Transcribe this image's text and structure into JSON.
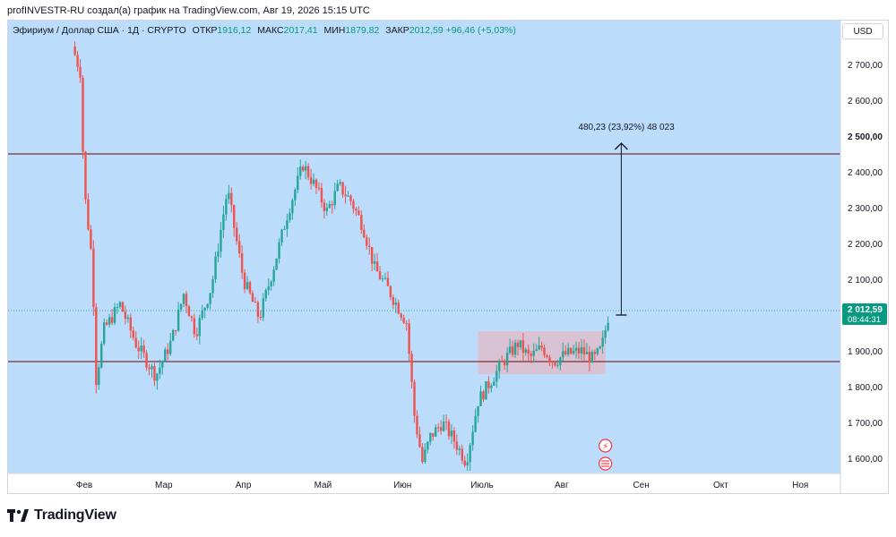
{
  "header": {
    "credit": "profINVESTR-RU создал(а) график на TradingView.com, Авг 19, 2026 15:15 UTC"
  },
  "legend": {
    "symbol": "Эфириум / Доллар США · 1Д · CRYPTO",
    "open_label": "ОТКР",
    "open_value": "1916,12",
    "high_label": "МАКС",
    "high_value": "2017,41",
    "low_label": "МИН",
    "low_value": "1879,82",
    "close_label": "ЗАКР",
    "close_value": "2012,59",
    "change": "+96,46 (+5,03%)"
  },
  "currency_button": "USD",
  "footer": {
    "brand": "TradingView"
  },
  "colors": {
    "background": "#bcdcfb",
    "up": "#26a69a",
    "down": "#ef5350",
    "level_line": "#7b2f2f",
    "price_tag": "#089981",
    "range_box": "#e3b9c6"
  },
  "chart_data": {
    "type": "candlestick",
    "title": "Эфириум / Доллар США · 1Д · CRYPTO",
    "ylim": [
      1550,
      2770
    ],
    "y_ticks": [
      {
        "value": 2700,
        "label": "2 700,00"
      },
      {
        "value": 2600,
        "label": "2 600,00"
      },
      {
        "value": 2500,
        "label": "2 500,00"
      },
      {
        "value": 2400,
        "label": "2 400,00"
      },
      {
        "value": 2300,
        "label": "2 300,00"
      },
      {
        "value": 2200,
        "label": "2 200,00"
      },
      {
        "value": 2100,
        "label": "2 100,00"
      },
      {
        "value": 1900,
        "label": "1 900,00"
      },
      {
        "value": 1800,
        "label": "1 800,00"
      },
      {
        "value": 1700,
        "label": "1 700,00"
      },
      {
        "value": 1600,
        "label": "1 600,00"
      }
    ],
    "x_ticks": [
      {
        "month": 0,
        "label": "Фев"
      },
      {
        "month": 1,
        "label": "Мар"
      },
      {
        "month": 2,
        "label": "Апр"
      },
      {
        "month": 3,
        "label": "Май"
      },
      {
        "month": 4,
        "label": "Июн"
      },
      {
        "month": 5,
        "label": "Июль"
      },
      {
        "month": 6,
        "label": "Авг"
      },
      {
        "month": 7,
        "label": "Сен"
      },
      {
        "month": 8,
        "label": "Окт"
      },
      {
        "month": 9,
        "label": "Ноя"
      }
    ],
    "horizontal_levels": [
      2450,
      1870
    ],
    "last_price": {
      "value": 2012.59,
      "label": "2 012,59",
      "countdown": "08:44:31"
    },
    "range_box": {
      "start_month": 4.95,
      "end_month": 6.55,
      "low": 1835,
      "high": 1955
    },
    "measure": {
      "month": 6.75,
      "from": 2000,
      "to": 2480,
      "label": "480,23 (23,92%) 48 023"
    },
    "path_points": [
      {
        "month": -0.15,
        "price": 2750
      },
      {
        "month": -0.05,
        "price": 2680
      },
      {
        "month": 0.0,
        "price": 2350
      },
      {
        "month": 0.1,
        "price": 2150
      },
      {
        "month": 0.15,
        "price": 1820
      },
      {
        "month": 0.25,
        "price": 1960
      },
      {
        "month": 0.45,
        "price": 2030
      },
      {
        "month": 0.65,
        "price": 1920
      },
      {
        "month": 0.9,
        "price": 1830
      },
      {
        "month": 1.1,
        "price": 1930
      },
      {
        "month": 1.25,
        "price": 2060
      },
      {
        "month": 1.4,
        "price": 1950
      },
      {
        "month": 1.6,
        "price": 2080
      },
      {
        "month": 1.8,
        "price": 2350
      },
      {
        "month": 2.0,
        "price": 2100
      },
      {
        "month": 2.2,
        "price": 1990
      },
      {
        "month": 2.4,
        "price": 2150
      },
      {
        "month": 2.55,
        "price": 2280
      },
      {
        "month": 2.75,
        "price": 2420
      },
      {
        "month": 2.9,
        "price": 2360
      },
      {
        "month": 3.05,
        "price": 2290
      },
      {
        "month": 3.2,
        "price": 2360
      },
      {
        "month": 3.35,
        "price": 2320
      },
      {
        "month": 3.5,
        "price": 2250
      },
      {
        "month": 3.65,
        "price": 2130
      },
      {
        "month": 3.8,
        "price": 2080
      },
      {
        "month": 3.95,
        "price": 2020
      },
      {
        "month": 4.05,
        "price": 1980
      },
      {
        "month": 4.15,
        "price": 1720
      },
      {
        "month": 4.25,
        "price": 1590
      },
      {
        "month": 4.35,
        "price": 1660
      },
      {
        "month": 4.5,
        "price": 1700
      },
      {
        "month": 4.65,
        "price": 1650
      },
      {
        "month": 4.8,
        "price": 1590
      },
      {
        "month": 4.95,
        "price": 1760
      },
      {
        "month": 5.15,
        "price": 1830
      },
      {
        "month": 5.3,
        "price": 1880
      },
      {
        "month": 5.45,
        "price": 1920
      },
      {
        "month": 5.6,
        "price": 1880
      },
      {
        "month": 5.75,
        "price": 1910
      },
      {
        "month": 5.9,
        "price": 1870
      },
      {
        "month": 6.05,
        "price": 1890
      },
      {
        "month": 6.25,
        "price": 1900
      },
      {
        "month": 6.4,
        "price": 1875
      },
      {
        "month": 6.5,
        "price": 1905
      },
      {
        "month": 6.6,
        "price": 2012
      }
    ]
  }
}
